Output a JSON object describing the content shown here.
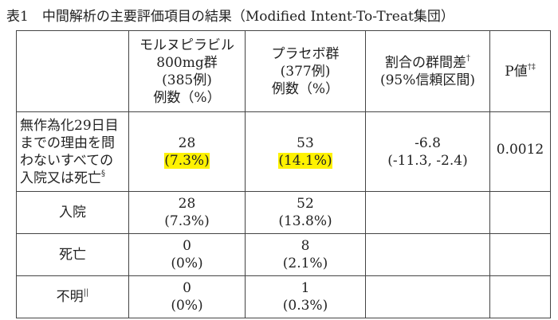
{
  "title": "表1　中間解析の主要評価項目の結果（Modified Intent-To-Treat集団）",
  "table": {
    "header": [
      {
        "lines": [
          "モルヌピラビル",
          "800mg群",
          "(385例)",
          "例数（%）"
        ]
      },
      {
        "lines": [
          "プラセボ群",
          "(377例)",
          "例数（%）"
        ]
      },
      {
        "lines": [
          "割合の群間差",
          "(95%信頼区間)"
        ],
        "sup": "†"
      },
      {
        "lines": [
          "P値"
        ],
        "sup": "†‡"
      }
    ],
    "rows": [
      {
        "label": [
          "無作為化29日目",
          "までの理由を問",
          "わないすべての",
          "入院又は死亡"
        ],
        "sup": "§",
        "molnupiravir": [
          "28",
          "(7.3%)"
        ],
        "placebo": [
          "53",
          "(14.1%)"
        ],
        "difference": [
          "-6.8",
          "(-11.3, -2.4)"
        ],
        "p_value": "0.0012"
      },
      {
        "label": [
          "入院"
        ],
        "molnupiravir": [
          "28",
          "(7.3%)"
        ],
        "placebo": [
          "52",
          "(13.8%)"
        ]
      },
      {
        "label": [
          "死亡"
        ],
        "molnupiravir": [
          "0",
          "(0%)"
        ],
        "placebo": [
          "8",
          "(2.1%)"
        ]
      },
      {
        "label": [
          "不明"
        ],
        "sup": "||",
        "molnupiravir": [
          "0",
          "(0%)"
        ],
        "placebo": [
          "1",
          "(0.3%)"
        ]
      }
    ]
  }
}
